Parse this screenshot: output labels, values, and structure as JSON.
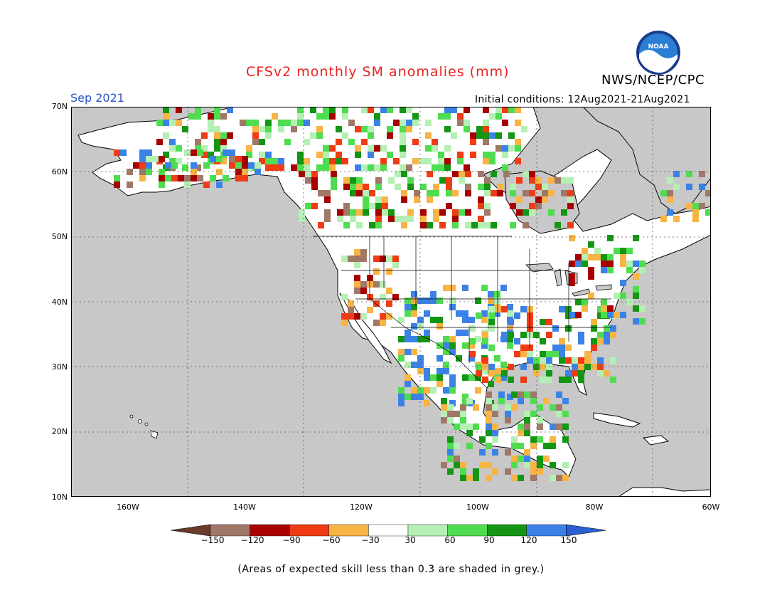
{
  "header": {
    "title": "CFSv2 monthly SM anomalies (mm)",
    "agency": "NWS/NCEP/CPC",
    "logo_text": "NOAA",
    "month": "Sep 2021",
    "initial_conditions": "Initial conditions: 12Aug2021-21Aug2021"
  },
  "map": {
    "lat_labels": [
      "70N",
      "60N",
      "50N",
      "40N",
      "30N",
      "20N",
      "10N"
    ],
    "lon_labels": [
      "160W",
      "140W",
      "120W",
      "100W",
      "80W",
      "60W"
    ],
    "extent": {
      "lon": [
        -170,
        -60
      ],
      "lat": [
        10,
        70
      ]
    },
    "ocean_color": "#c8c8c8",
    "land_color": "#ffffff",
    "grid": "dotted"
  },
  "colorbar": {
    "labels": [
      "−150",
      "−120",
      "−90",
      "−60",
      "−30",
      "30",
      "60",
      "90",
      "120",
      "150"
    ],
    "colors": [
      "#6b3a2b",
      "#a07868",
      "#a80000",
      "#f03c14",
      "#f8b444",
      "#ffffff",
      "#b4f0b4",
      "#50dc50",
      "#149614",
      "#3c82e6",
      "#2860d2"
    ]
  },
  "footer": {
    "note": "(Areas of expected skill less than 0.3 are shaded in grey.)"
  }
}
